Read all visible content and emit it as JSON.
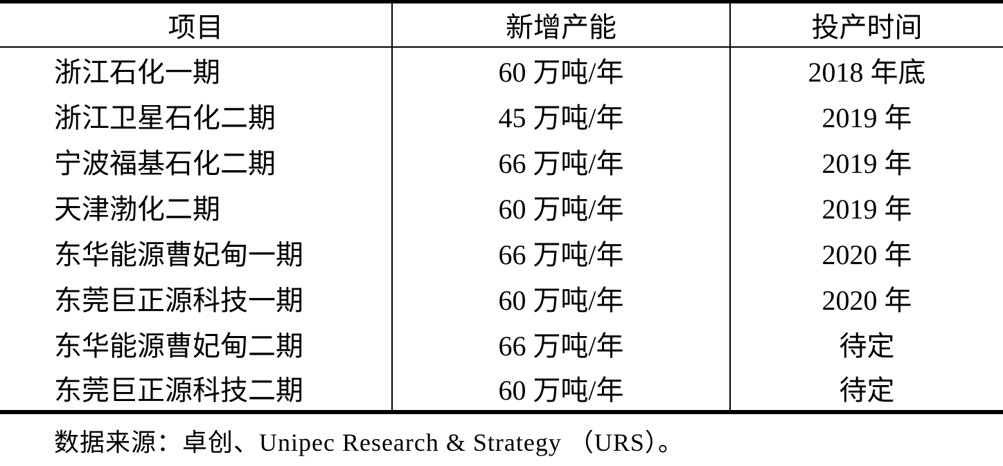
{
  "table": {
    "columns": [
      {
        "key": "project",
        "label": "项目"
      },
      {
        "key": "capacity",
        "label": "新增产能"
      },
      {
        "key": "time",
        "label": "投产时间"
      }
    ],
    "rows": [
      {
        "project": "浙江石化一期",
        "capacity": "60 万吨/年",
        "time": "2018 年底"
      },
      {
        "project": "浙江卫星石化二期",
        "capacity": "45 万吨/年",
        "time": "2019 年"
      },
      {
        "project": "宁波福基石化二期",
        "capacity": "66 万吨/年",
        "time": "2019 年"
      },
      {
        "project": "天津渤化二期",
        "capacity": "60 万吨/年",
        "time": "2019 年"
      },
      {
        "project": "东华能源曹妃甸一期",
        "capacity": "66 万吨/年",
        "time": "2020 年"
      },
      {
        "project": "东莞巨正源科技一期",
        "capacity": "60 万吨/年",
        "time": "2020 年"
      },
      {
        "project": "东华能源曹妃甸二期",
        "capacity": "66 万吨/年",
        "time": "待定"
      },
      {
        "project": "东莞巨正源科技二期",
        "capacity": "60 万吨/年",
        "time": "待定"
      }
    ]
  },
  "footer": {
    "source_note": "数据来源：卓创、Unipec Research & Strategy （URS）。"
  },
  "colors": {
    "text": "#000000",
    "background": "#ffffff",
    "border": "#000000"
  }
}
